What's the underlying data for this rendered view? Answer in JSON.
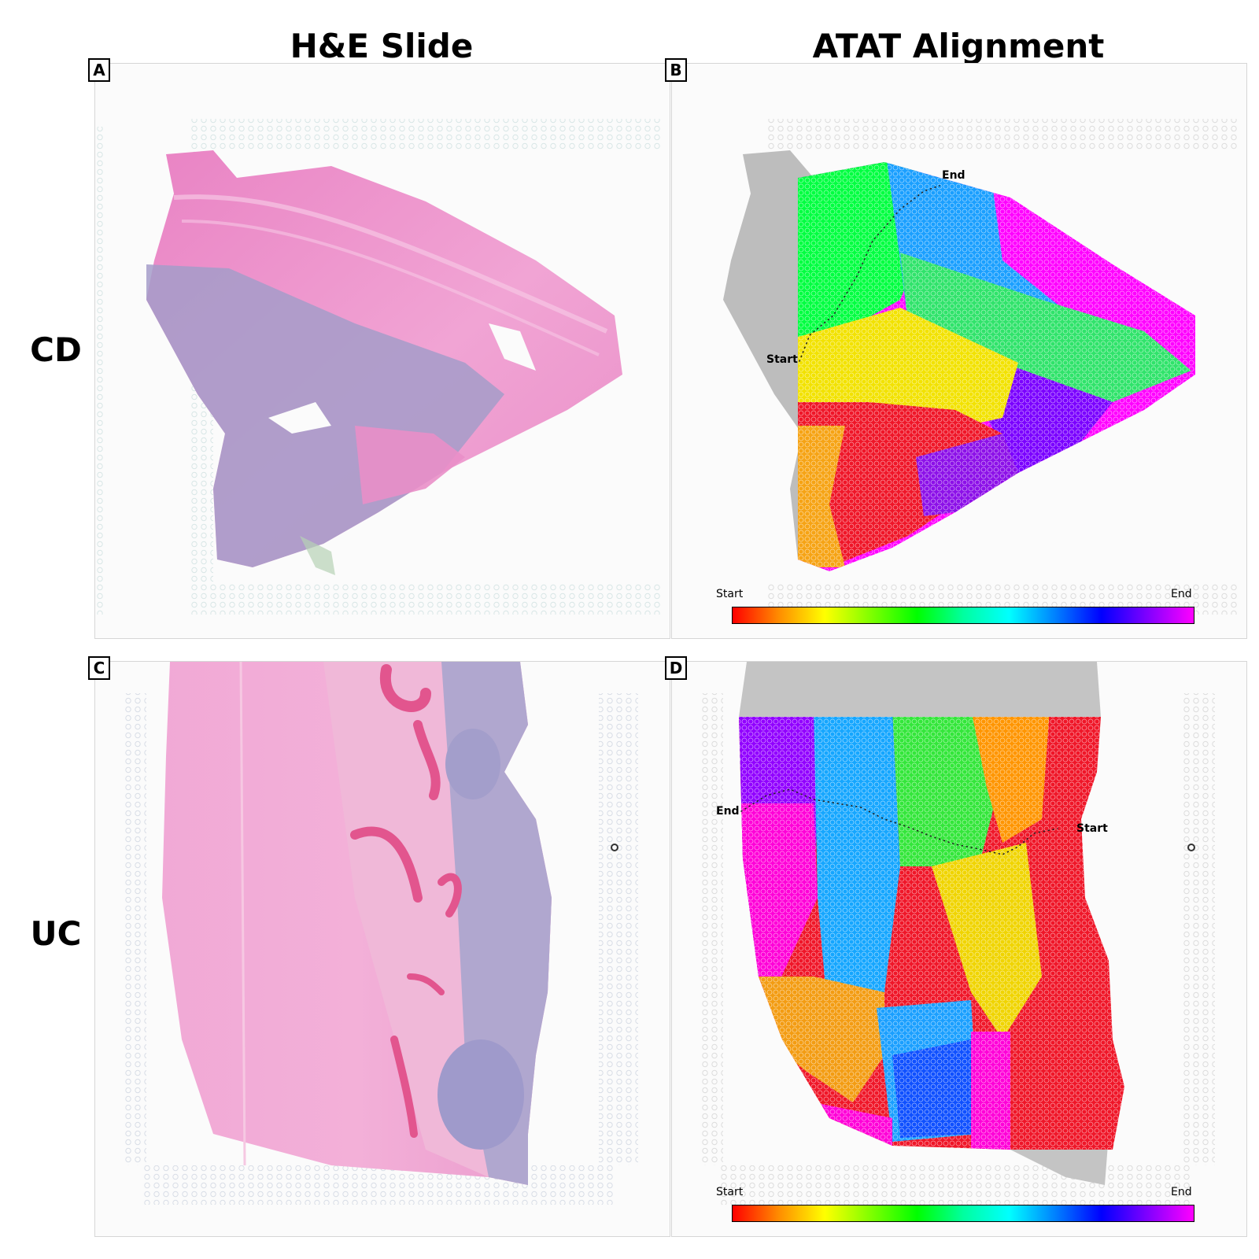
{
  "columns": {
    "he_title": "H&E Slide",
    "atat_title": "ATAT Alignment"
  },
  "rows": {
    "top": "CD",
    "bottom": "UC"
  },
  "panels": {
    "a": {
      "letter": "A"
    },
    "b": {
      "letter": "B",
      "path_start": "Start",
      "path_end": "End",
      "colorbar_start": "Start",
      "colorbar_end": "End"
    },
    "c": {
      "letter": "C"
    },
    "d": {
      "letter": "D",
      "path_start": "Start",
      "path_end": "End",
      "colorbar_start": "Start",
      "colorbar_end": "End"
    }
  },
  "colors": {
    "he_pink": "#e98fc8",
    "he_purple": "#a59cc9",
    "colormap": [
      "#ff0000",
      "#ff8c00",
      "#ffff00",
      "#00ff00",
      "#00ffff",
      "#0000ff",
      "#ff00ff"
    ]
  }
}
